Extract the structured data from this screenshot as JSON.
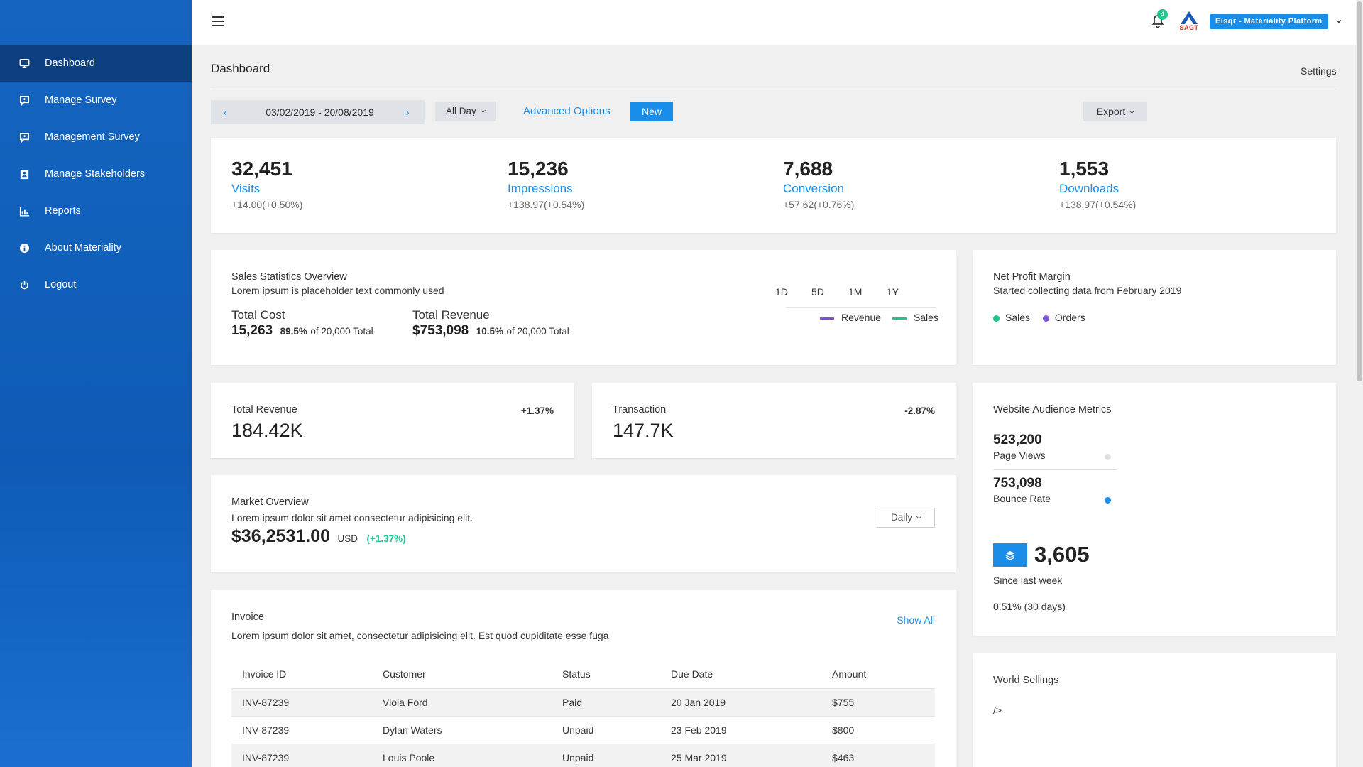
{
  "sidebar": {
    "items": [
      {
        "label": "Dashboard",
        "icon": "monitor-icon"
      },
      {
        "label": "Manage Survey",
        "icon": "survey-icon"
      },
      {
        "label": "Management Survey",
        "icon": "survey-icon"
      },
      {
        "label": "Manage Stakeholders",
        "icon": "contact-icon"
      },
      {
        "label": "Reports",
        "icon": "bar-chart-icon"
      },
      {
        "label": "About Materiality",
        "icon": "info-icon"
      },
      {
        "label": "Logout",
        "icon": "power-icon"
      }
    ]
  },
  "header": {
    "notification_count": "4",
    "logo_text": "SAGT",
    "platform": "Eisqr - Materiality Platform"
  },
  "page": {
    "title": "Dashboard",
    "settings": "Settings"
  },
  "filters": {
    "date_range": "03/02/2019 - 20/08/2019",
    "period": "All Day",
    "advanced": "Advanced Options",
    "new_label": "New",
    "export": "Export"
  },
  "stats": [
    {
      "value": "32,451",
      "label": "Visits",
      "change": "+14.00(+0.50%)"
    },
    {
      "value": "15,236",
      "label": "Impressions",
      "change": "+138.97(+0.54%)"
    },
    {
      "value": "7,688",
      "label": "Conversion",
      "change": "+57.62(+0.76%)"
    },
    {
      "value": "1,553",
      "label": "Downloads",
      "change": "+138.97(+0.54%)"
    }
  ],
  "sales": {
    "title": "Sales Statistics Overview",
    "subtitle": "Lorem ipsum is placeholder text commonly used",
    "cost_label": "Total Cost",
    "cost_value": "15,263",
    "cost_pct": "89.5%",
    "cost_total": "of 20,000 Total",
    "revenue_label": "Total Revenue",
    "revenue_value": "$753,098",
    "revenue_pct": "10.5%",
    "revenue_total": "of 20,000 Total",
    "timeframes": [
      "1D",
      "5D",
      "1M",
      "1Y"
    ],
    "legend": [
      {
        "label": "Revenue",
        "color": "#7b4fd6"
      },
      {
        "label": "Sales",
        "color": "#1fc58b"
      }
    ]
  },
  "net_profit": {
    "title": "Net Profit Margin",
    "subtitle": "Started collecting data from February 2019",
    "legend": [
      {
        "label": "Sales",
        "color": "#1fc58b"
      },
      {
        "label": "Orders",
        "color": "#7b4fd6"
      }
    ]
  },
  "total_revenue": {
    "title": "Total Revenue",
    "value": "184.42K",
    "change": "+1.37%"
  },
  "transaction": {
    "title": "Transaction",
    "value": "147.7K",
    "change": "-2.87%"
  },
  "audience": {
    "title": "Website Audience Metrics",
    "page_views_value": "523,200",
    "page_views_label": "Page Views",
    "bounce_value": "753,098",
    "bounce_label": "Bounce Rate",
    "total": "3,605",
    "since": "Since last week",
    "pct": "0.51% (30 days)"
  },
  "market": {
    "title": "Market Overview",
    "subtitle": "Lorem ipsum dolor sit amet consectetur adipisicing elit.",
    "value": "$36,2531.00",
    "currency": "USD",
    "change": "(+1.37%)",
    "period": "Daily"
  },
  "invoice": {
    "title": "Invoice",
    "subtitle": "Lorem ipsum dolor sit amet, consectetur adipisicing elit. Est quod cupiditate esse fuga",
    "show_all": "Show All",
    "columns": [
      "Invoice ID",
      "Customer",
      "Status",
      "Due Date",
      "Amount"
    ],
    "rows": [
      [
        "INV-87239",
        "Viola Ford",
        "Paid",
        "20 Jan 2019",
        "$755"
      ],
      [
        "INV-87239",
        "Dylan Waters",
        "Unpaid",
        "23 Feb 2019",
        "$800"
      ],
      [
        "INV-87239",
        "Louis Poole",
        "Unpaid",
        "25 Mar 2019",
        "$463"
      ]
    ]
  },
  "world": {
    "title": "World Sellings",
    "text": "/>"
  }
}
